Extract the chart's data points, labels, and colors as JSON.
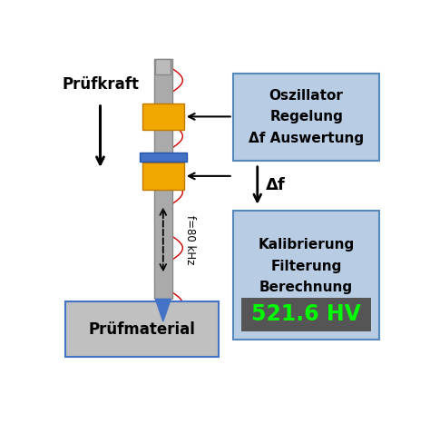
{
  "bg_color": "#ffffff",
  "probe_color": "#aaaaaa",
  "yellow_color": "#f0a800",
  "blue_color": "#4472c4",
  "box1_color": "#b8cce4",
  "box2_color": "#b8cce4",
  "hv_bg_color": "#555555",
  "hv_text_color": "#00ff00",
  "material_color": "#c0c0c0",
  "material_edge_color": "#4472c4",
  "tip_color": "#4472c4",
  "wave_color": "#cc0000",
  "dashed_color": "#222222",
  "text_pruefkraft": "Prüfkraft",
  "text_oszillator": "Oszillator\nRegelung\nΔf Auswertung",
  "text_delta_f": "Δf",
  "text_kalibrierung": "Kalibrierung\nFilterung\nBerechnung",
  "text_hv": "521.6 HV",
  "text_material": "Prüfmaterial",
  "text_freq": "f=80 kHz"
}
